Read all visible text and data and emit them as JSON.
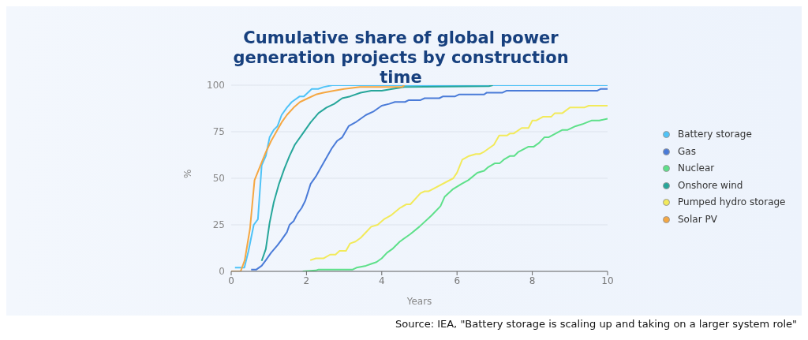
{
  "chart_data": {
    "type": "line",
    "title": "Cumulative share of global power generation projects by construction time",
    "xlabel": "Years",
    "ylabel": "%",
    "xlim": [
      0,
      10
    ],
    "xticks": [
      0,
      2,
      4,
      6,
      8,
      10
    ],
    "ylim": [
      0,
      100
    ],
    "yticks": [
      0,
      25,
      50,
      75,
      100
    ],
    "grid": "y",
    "legend": "right",
    "marker": "none",
    "annotations": [
      "Source: IEA, \"Battery storage is scaling up and taking on a larger system role\""
    ],
    "series": [
      {
        "name": "Battery storage",
        "color": "#4fc3f7",
        "x": [
          0.1,
          0.25,
          0.35,
          0.46,
          0.6,
          0.71,
          0.81,
          0.92,
          1.02,
          1.13,
          1.23,
          1.34,
          1.48,
          1.61,
          1.82,
          1.93,
          2.14,
          2.31,
          2.45,
          2.69,
          10
        ],
        "values": [
          2,
          2,
          2,
          11,
          25,
          28,
          57,
          62,
          72,
          76,
          78,
          84,
          88,
          91,
          94,
          94,
          98,
          98,
          99,
          100,
          100
        ]
      },
      {
        "name": "Gas",
        "color": "#4a7bd8",
        "x": [
          0.53,
          0.67,
          0.81,
          0.92,
          1.06,
          1.23,
          1.34,
          1.48,
          1.55,
          1.66,
          1.76,
          1.87,
          1.97,
          2.11,
          2.25,
          2.39,
          2.53,
          2.67,
          2.81,
          2.95,
          3.12,
          3.3,
          3.44,
          3.58,
          3.79,
          4.0,
          4.2,
          4.35,
          4.62,
          4.72,
          5.03,
          5.14,
          5.53,
          5.63,
          5.95,
          6.05,
          6.72,
          6.79,
          7.21,
          7.31,
          9.72,
          9.82,
          10
        ],
        "values": [
          1,
          1,
          3,
          6,
          10,
          14,
          17,
          21,
          25,
          27,
          31,
          34,
          38,
          47,
          51,
          56,
          61,
          66,
          70,
          72,
          78,
          80,
          82,
          84,
          86,
          89,
          90,
          91,
          91,
          92,
          92,
          93,
          93,
          94,
          94,
          95,
          95,
          96,
          96,
          97,
          97,
          98,
          98
        ]
      },
      {
        "name": "Nuclear",
        "color": "#5ee08a",
        "x": [
          1.9,
          2.25,
          2.32,
          3.23,
          3.33,
          3.58,
          3.72,
          3.86,
          4.0,
          4.14,
          4.28,
          4.48,
          4.76,
          5.0,
          5.32,
          5.56,
          5.67,
          5.88,
          6.12,
          6.3,
          6.54,
          6.72,
          6.83,
          7.0,
          7.13,
          7.24,
          7.41,
          7.52,
          7.62,
          7.9,
          8.04,
          8.18,
          8.32,
          8.43,
          8.8,
          8.94,
          9.15,
          9.32,
          9.57,
          9.78,
          10
        ],
        "values": [
          0,
          0.5,
          1,
          1,
          2,
          3,
          4,
          5,
          7,
          10,
          12,
          16,
          20,
          24,
          30,
          35,
          40,
          44,
          47,
          49,
          53,
          54,
          56,
          58,
          58,
          60,
          62,
          62,
          64,
          67,
          67,
          69,
          72,
          72,
          76,
          76,
          78,
          79,
          81,
          81,
          82
        ]
      },
      {
        "name": "Onshore wind",
        "color": "#26a69a",
        "x": [
          0.81,
          0.92,
          1.02,
          1.13,
          1.27,
          1.41,
          1.55,
          1.69,
          1.9,
          2.11,
          2.32,
          2.53,
          2.74,
          2.95,
          3.16,
          3.44,
          3.72,
          4.0,
          4.28,
          4.6,
          6.85,
          6.95
        ],
        "values": [
          5.6,
          12,
          26,
          37,
          47,
          55,
          62,
          68,
          74,
          80,
          85,
          88,
          90,
          93,
          94,
          96,
          97,
          97,
          98,
          99,
          99.5,
          100
        ]
      },
      {
        "name": "Pumped hydro storage",
        "color": "#f2ea5a",
        "x": [
          2.1,
          2.25,
          2.46,
          2.63,
          2.77,
          2.88,
          3.05,
          3.16,
          3.3,
          3.44,
          3.58,
          3.72,
          3.89,
          4.06,
          4.24,
          4.48,
          4.65,
          4.76,
          5.03,
          5.14,
          5.24,
          5.9,
          6.0,
          6.14,
          6.32,
          6.5,
          6.6,
          6.7,
          6.84,
          6.98,
          7.12,
          7.33,
          7.4,
          7.5,
          7.72,
          7.9,
          8.0,
          8.1,
          8.28,
          8.5,
          8.6,
          8.8,
          9.0,
          9.38,
          9.5,
          10
        ],
        "values": [
          6,
          7,
          7,
          9,
          9,
          11,
          11,
          15,
          16,
          18,
          21,
          24,
          25,
          28,
          30,
          34,
          36,
          36,
          42,
          43,
          43,
          50,
          53,
          60,
          62,
          63,
          63,
          64,
          66,
          68,
          73,
          73,
          74,
          74,
          77,
          77,
          81,
          81,
          83,
          83,
          85,
          85,
          88,
          88,
          89,
          89
        ]
      },
      {
        "name": "Solar PV",
        "color": "#f5a742",
        "x": [
          0,
          0.25,
          0.36,
          0.5,
          0.62,
          0.78,
          0.92,
          1.06,
          1.2,
          1.34,
          1.48,
          1.66,
          1.83,
          2.04,
          2.25,
          2.45,
          2.73,
          3.0,
          3.42,
          4.54,
          4.6
        ],
        "values": [
          0,
          0,
          6,
          23,
          49,
          57,
          64,
          70,
          75,
          80,
          84,
          88,
          91,
          93,
          95,
          96,
          97,
          98,
          99,
          99,
          100
        ]
      }
    ]
  }
}
